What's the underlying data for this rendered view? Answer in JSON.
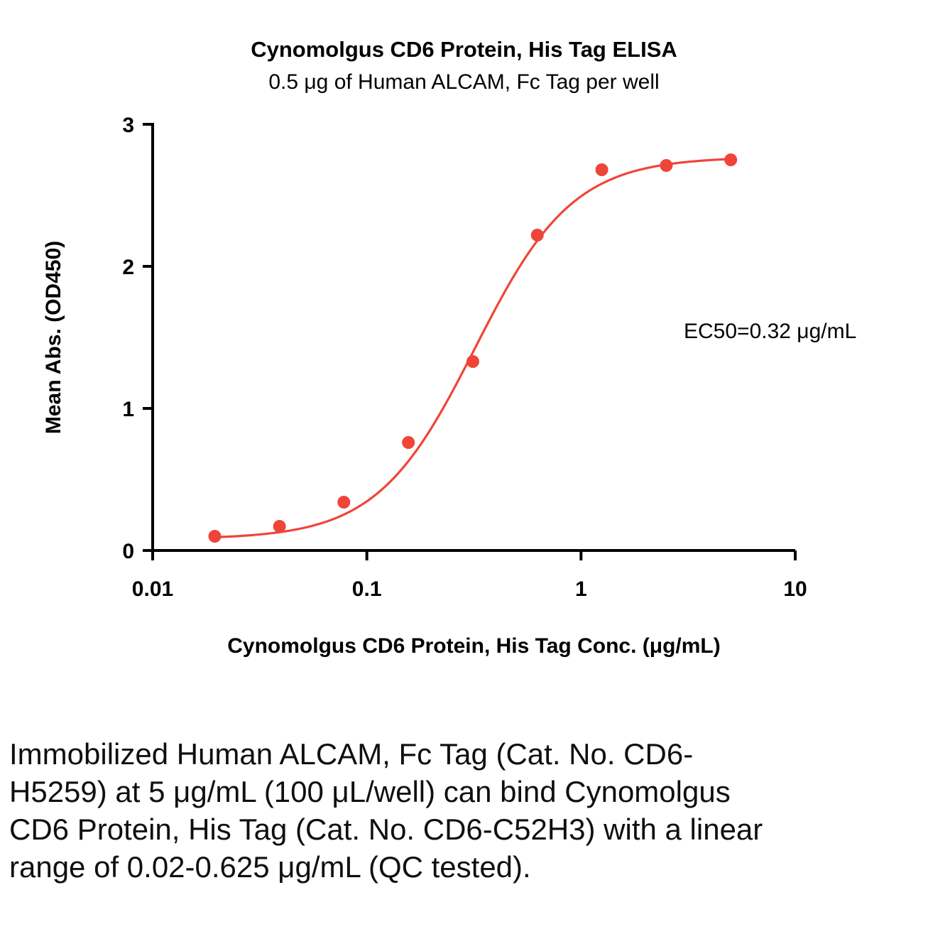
{
  "page": {
    "caption": "Immobilized Human ALCAM, Fc Tag (Cat. No. CD6-H5259) at 5 μg/mL (100 μL/well) can bind Cynomolgus CD6 Protein, His Tag (Cat. No. CD6-C52H3) with a linear range of 0.02-0.625 μg/mL (QC tested)."
  },
  "chart_data": {
    "type": "scatter",
    "title": "Cynomolgus CD6 Protein, His Tag ELISA",
    "subtitle": "0.5 μg of Human ALCAM, Fc Tag per well",
    "xlabel": "Cynomolgus CD6 Protein, His Tag Conc. (μg/mL)",
    "ylabel": "Mean Abs. (OD450)",
    "annotation": "EC50=0.32 μg/mL",
    "x_scale": "log10",
    "xlim": [
      0.01,
      10
    ],
    "ylim": [
      0,
      3
    ],
    "grid": false,
    "legend": false,
    "x_ticks": [
      {
        "value": 0.01,
        "label": "0.01"
      },
      {
        "value": 0.1,
        "label": "0.1"
      },
      {
        "value": 1,
        "label": "1"
      },
      {
        "value": 10,
        "label": "10"
      }
    ],
    "y_ticks": [
      {
        "value": 0,
        "label": "0"
      },
      {
        "value": 1,
        "label": "1"
      },
      {
        "value": 2,
        "label": "2"
      },
      {
        "value": 3,
        "label": "3"
      }
    ],
    "series": [
      {
        "name": "Cynomolgus CD6 Protein, His Tag",
        "color": "#EF4538",
        "points": [
          {
            "x": 0.0195,
            "y": 0.1
          },
          {
            "x": 0.0391,
            "y": 0.17
          },
          {
            "x": 0.0781,
            "y": 0.34
          },
          {
            "x": 0.1563,
            "y": 0.76
          },
          {
            "x": 0.3125,
            "y": 1.33
          },
          {
            "x": 0.625,
            "y": 2.22
          },
          {
            "x": 1.25,
            "y": 2.68
          },
          {
            "x": 2.5,
            "y": 2.71
          },
          {
            "x": 5,
            "y": 2.75
          }
        ]
      }
    ],
    "fit": {
      "model": "4PL",
      "bottom": 0.08,
      "top": 2.77,
      "ec50": 0.32,
      "hill": 1.9,
      "x_range": [
        0.0185,
        5.3
      ]
    },
    "marker_radius": 9
  }
}
